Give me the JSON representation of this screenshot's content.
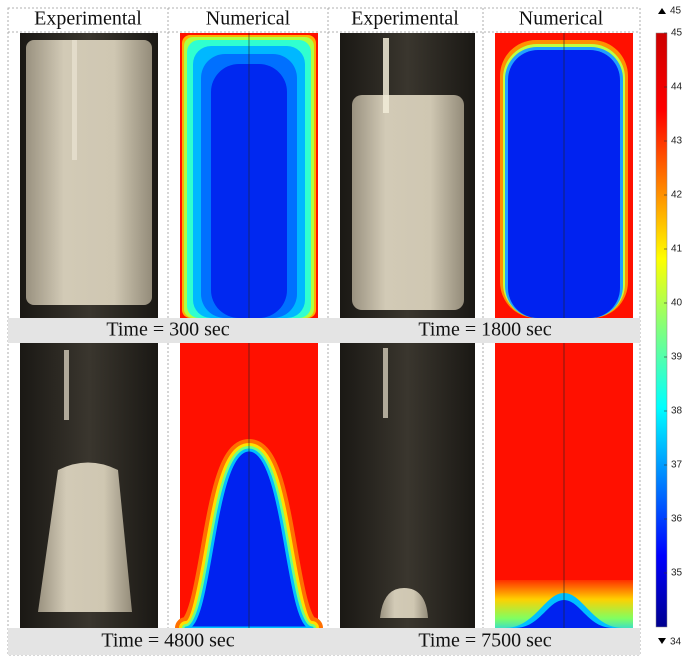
{
  "column_headers": [
    "Experimental",
    "Numerical",
    "Experimental",
    "Numerical"
  ],
  "captions": [
    "Time = 300 sec",
    "Time = 1800 sec",
    "Time = 4800 sec",
    "Time = 7500 sec"
  ],
  "colorbar": {
    "range": [
      34,
      45
    ],
    "ticks": [
      45,
      44,
      43,
      42,
      41,
      40,
      39,
      38,
      37,
      36,
      35
    ]
  }
}
